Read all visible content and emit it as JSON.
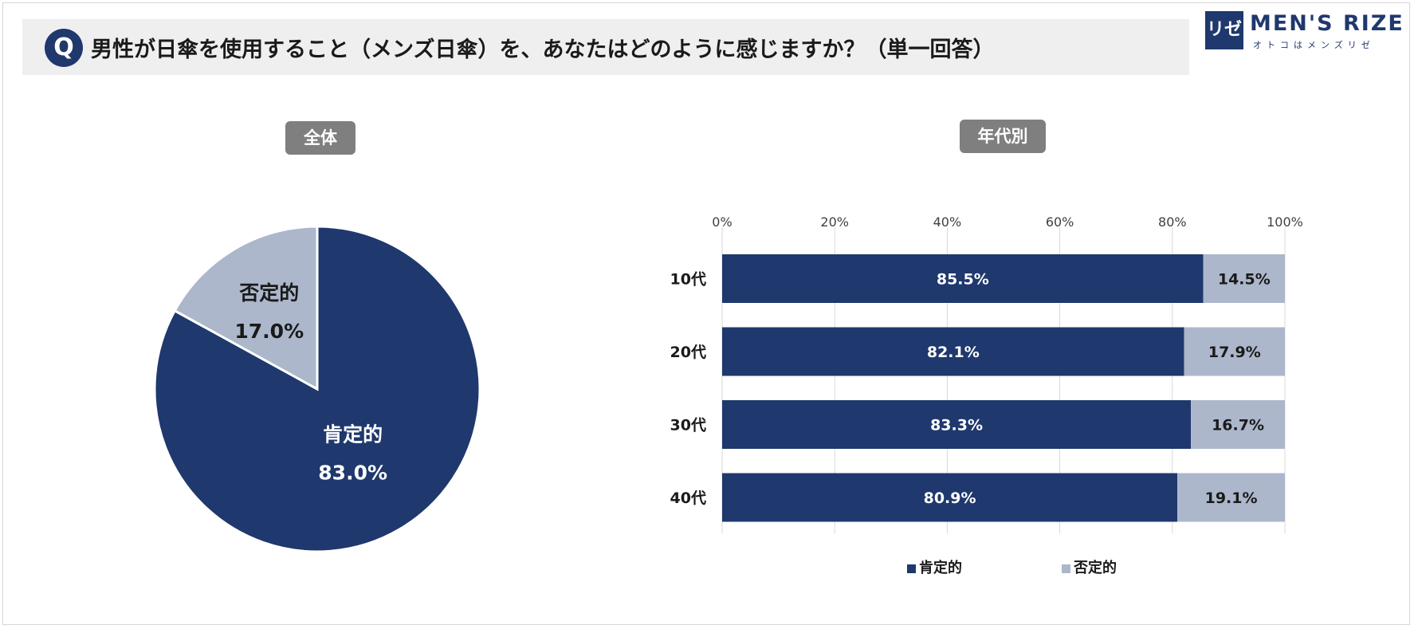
{
  "question": {
    "badge": "Q",
    "text": "男性が日傘を使用すること（メンズ日傘）を、あなたはどのように感じますか？（単一回答）"
  },
  "logo": {
    "mark": "リゼ",
    "name": "MEN'S RIZE",
    "tagline": "オトコはメンズリゼ"
  },
  "sections": {
    "overall": "全体",
    "by_age": "年代別"
  },
  "colors": {
    "positive": "#1f386d",
    "negative": "#acb7cb"
  },
  "chart_data": [
    {
      "type": "pie",
      "title": "全体",
      "slices": [
        {
          "label": "肯定的",
          "value": 83.0,
          "display": "83.0%"
        },
        {
          "label": "否定的",
          "value": 17.0,
          "display": "17.0%"
        }
      ]
    },
    {
      "type": "bar",
      "orientation": "horizontal",
      "stacked": "percent",
      "title": "年代別",
      "categories": [
        "10代",
        "20代",
        "30代",
        "40代"
      ],
      "series": [
        {
          "name": "肯定的",
          "values": [
            85.5,
            82.1,
            83.3,
            80.9
          ],
          "labels": [
            "85.5%",
            "82.1%",
            "83.3%",
            "80.9%"
          ]
        },
        {
          "name": "否定的",
          "values": [
            14.5,
            17.9,
            16.7,
            19.1
          ],
          "labels": [
            "14.5%",
            "17.9%",
            "16.7%",
            "19.1%"
          ]
        }
      ],
      "xlim": [
        0,
        100
      ],
      "xticks": [
        "0%",
        "20%",
        "40%",
        "60%",
        "80%",
        "100%"
      ],
      "grid": true,
      "legend": "bottom"
    }
  ]
}
